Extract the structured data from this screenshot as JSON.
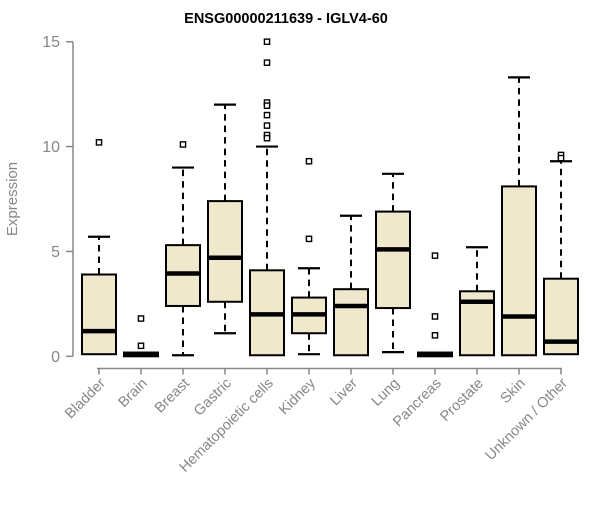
{
  "chart_data": {
    "type": "boxplot",
    "title": "ENSG00000211639 - IGLV4-60",
    "xlabel": "",
    "ylabel": "Expression",
    "ylim": [
      0,
      15
    ],
    "yticks": [
      0,
      5,
      10,
      15
    ],
    "grid": false,
    "legend": null,
    "categories": [
      "Bladder",
      "Brain",
      "Breast",
      "Gastric",
      "Hematopoietic cells",
      "Kidney",
      "Liver",
      "Lung",
      "Pancreas",
      "Prostate",
      "Skin",
      "Unknown / Other"
    ],
    "boxes": [
      {
        "category": "Bladder",
        "low": 0.1,
        "q1": 0.1,
        "median": 1.2,
        "q3": 3.9,
        "high": 5.7,
        "outliers": [
          10.2
        ]
      },
      {
        "category": "Brain",
        "low": 0,
        "q1": 0,
        "median": 0.08,
        "q3": 0.18,
        "high": 0.18,
        "outliers": [
          1.8,
          0.5
        ]
      },
      {
        "category": "Breast",
        "low": 0.05,
        "q1": 2.4,
        "median": 3.95,
        "q3": 5.3,
        "high": 9.0,
        "outliers": [
          10.1
        ]
      },
      {
        "category": "Gastric",
        "low": 1.1,
        "q1": 2.6,
        "median": 4.7,
        "q3": 7.4,
        "high": 12.0,
        "outliers": []
      },
      {
        "category": "Hematopoietic cells",
        "low": 0.05,
        "q1": 0.05,
        "median": 2.0,
        "q3": 4.1,
        "high": 10.0,
        "outliers": [
          15.0,
          14.0,
          12.1,
          11.95,
          11.5,
          11.0,
          10.55,
          10.4
        ]
      },
      {
        "category": "Kidney",
        "low": 0.1,
        "q1": 1.1,
        "median": 2.0,
        "q3": 2.8,
        "high": 4.2,
        "outliers": [
          9.3,
          5.6
        ]
      },
      {
        "category": "Liver",
        "low": 0.05,
        "q1": 0.05,
        "median": 2.4,
        "q3": 3.2,
        "high": 6.7,
        "outliers": []
      },
      {
        "category": "Lung",
        "low": 0.2,
        "q1": 2.3,
        "median": 5.1,
        "q3": 6.9,
        "high": 8.7,
        "outliers": []
      },
      {
        "category": "Pancreas",
        "low": 0,
        "q1": 0,
        "median": 0.08,
        "q3": 0.18,
        "high": 0.18,
        "outliers": [
          4.8,
          1.9,
          1.0
        ]
      },
      {
        "category": "Prostate",
        "low": 0.05,
        "q1": 0.05,
        "median": 2.6,
        "q3": 3.1,
        "high": 5.2,
        "outliers": []
      },
      {
        "category": "Skin",
        "low": 0.05,
        "q1": 0.05,
        "median": 1.9,
        "q3": 8.1,
        "high": 13.3,
        "outliers": []
      },
      {
        "category": "Unknown / Other",
        "low": 0.1,
        "q1": 0.1,
        "median": 0.7,
        "q3": 3.7,
        "high": 9.3,
        "outliers": [
          9.6,
          9.45
        ]
      }
    ],
    "colors": {
      "box_fill": "#F0E8CC",
      "box_stroke": "#000000",
      "median": "#000000",
      "whisker": "#000000",
      "outlier_fill": "#FFFFFF",
      "outlier_stroke": "#000000",
      "axis": "#878787",
      "axis_text": "#878787",
      "title": "#000000",
      "background": "#FFFFFF"
    },
    "marker": "open-square"
  }
}
